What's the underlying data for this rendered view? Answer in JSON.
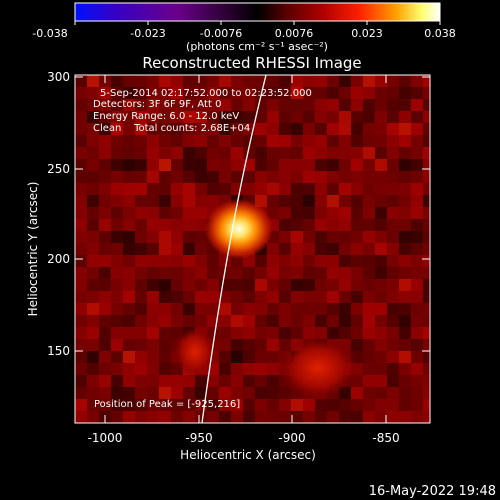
{
  "colorbar": {
    "ticks": [
      "-0.038",
      "-0.023",
      "-0.0076",
      "0.0076",
      "0.023",
      "0.038"
    ],
    "units": "(photons cm⁻² s⁻¹ asec⁻²)",
    "gradient_stops": [
      "#0010ff",
      "#3a00c0",
      "#6a008a",
      "#2a0030",
      "#000000",
      "#5a0000",
      "#b00000",
      "#ff2000",
      "#ffa000",
      "#ffff70",
      "#ffffff"
    ]
  },
  "plot": {
    "title": "Reconstructed RHESSI Image",
    "x_label": "Heliocentric X (arcsec)",
    "y_label": "Heliocentric Y (arcsec)",
    "x_ticks": [
      "-1000",
      "-950",
      "-900",
      "-850"
    ],
    "y_ticks": [
      "300",
      "250",
      "200",
      "150"
    ],
    "info_lines": [
      "5-Sep-2014 02:17:52.000 to 02:23:52.000",
      "Detectors: 3F 6F 9F, Att 0",
      "Energy Range: 6.0 - 12.0 keV",
      "Clean    Total counts: 2.68E+04"
    ],
    "peak_text": "Position of Peak = [-925,216]"
  },
  "footer": {
    "timestamp": "16-May-2022 19:48"
  }
}
